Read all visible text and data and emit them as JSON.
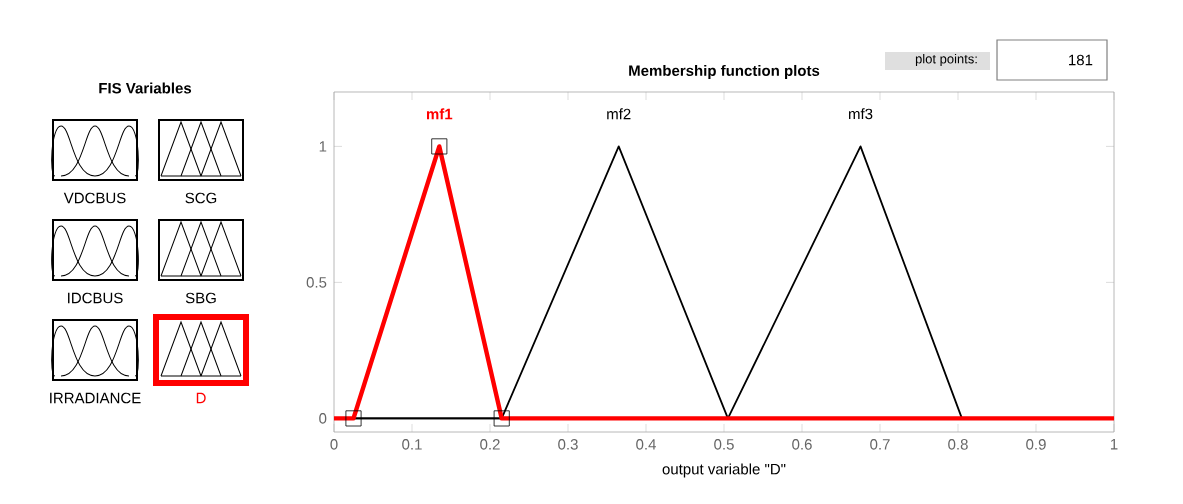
{
  "chart_data": {
    "type": "line",
    "title": "Membership function plots",
    "xlabel": "output variable \"D\"",
    "xlim": [
      0,
      1
    ],
    "ylim": [
      -0.05,
      1.2
    ],
    "xticks": [
      0,
      0.1,
      0.2,
      0.3,
      0.4,
      0.5,
      0.6,
      0.7,
      0.8,
      0.9,
      1
    ],
    "yticks": [
      0,
      0.5,
      1
    ],
    "series": [
      {
        "name": "mf1",
        "color": "#ff0000",
        "x": [
          0,
          0.025,
          0.135,
          0.215,
          1
        ],
        "values": [
          0,
          0,
          1,
          0,
          0
        ]
      },
      {
        "name": "mf2",
        "color": "#000000",
        "x": [
          0,
          0.215,
          0.365,
          0.505,
          1
        ],
        "values": [
          0,
          0,
          1,
          0,
          0
        ]
      },
      {
        "name": "mf3",
        "color": "#000000",
        "x": [
          0,
          0.505,
          0.675,
          0.805,
          1
        ],
        "values": [
          0,
          0,
          1,
          0,
          0
        ]
      },
      {
        "type": "scatter",
        "marker": "square",
        "color": "#000000",
        "x": [
          0.025,
          0.135,
          0.215
        ],
        "values": [
          0,
          1,
          0
        ]
      }
    ],
    "annotations": [
      "FIS Variables",
      "VDCBUS",
      "SCG",
      "IDCBUS",
      "SBG",
      "IRRADIANCE",
      "D",
      "plot points:",
      "181"
    ],
    "grid": false
  }
}
